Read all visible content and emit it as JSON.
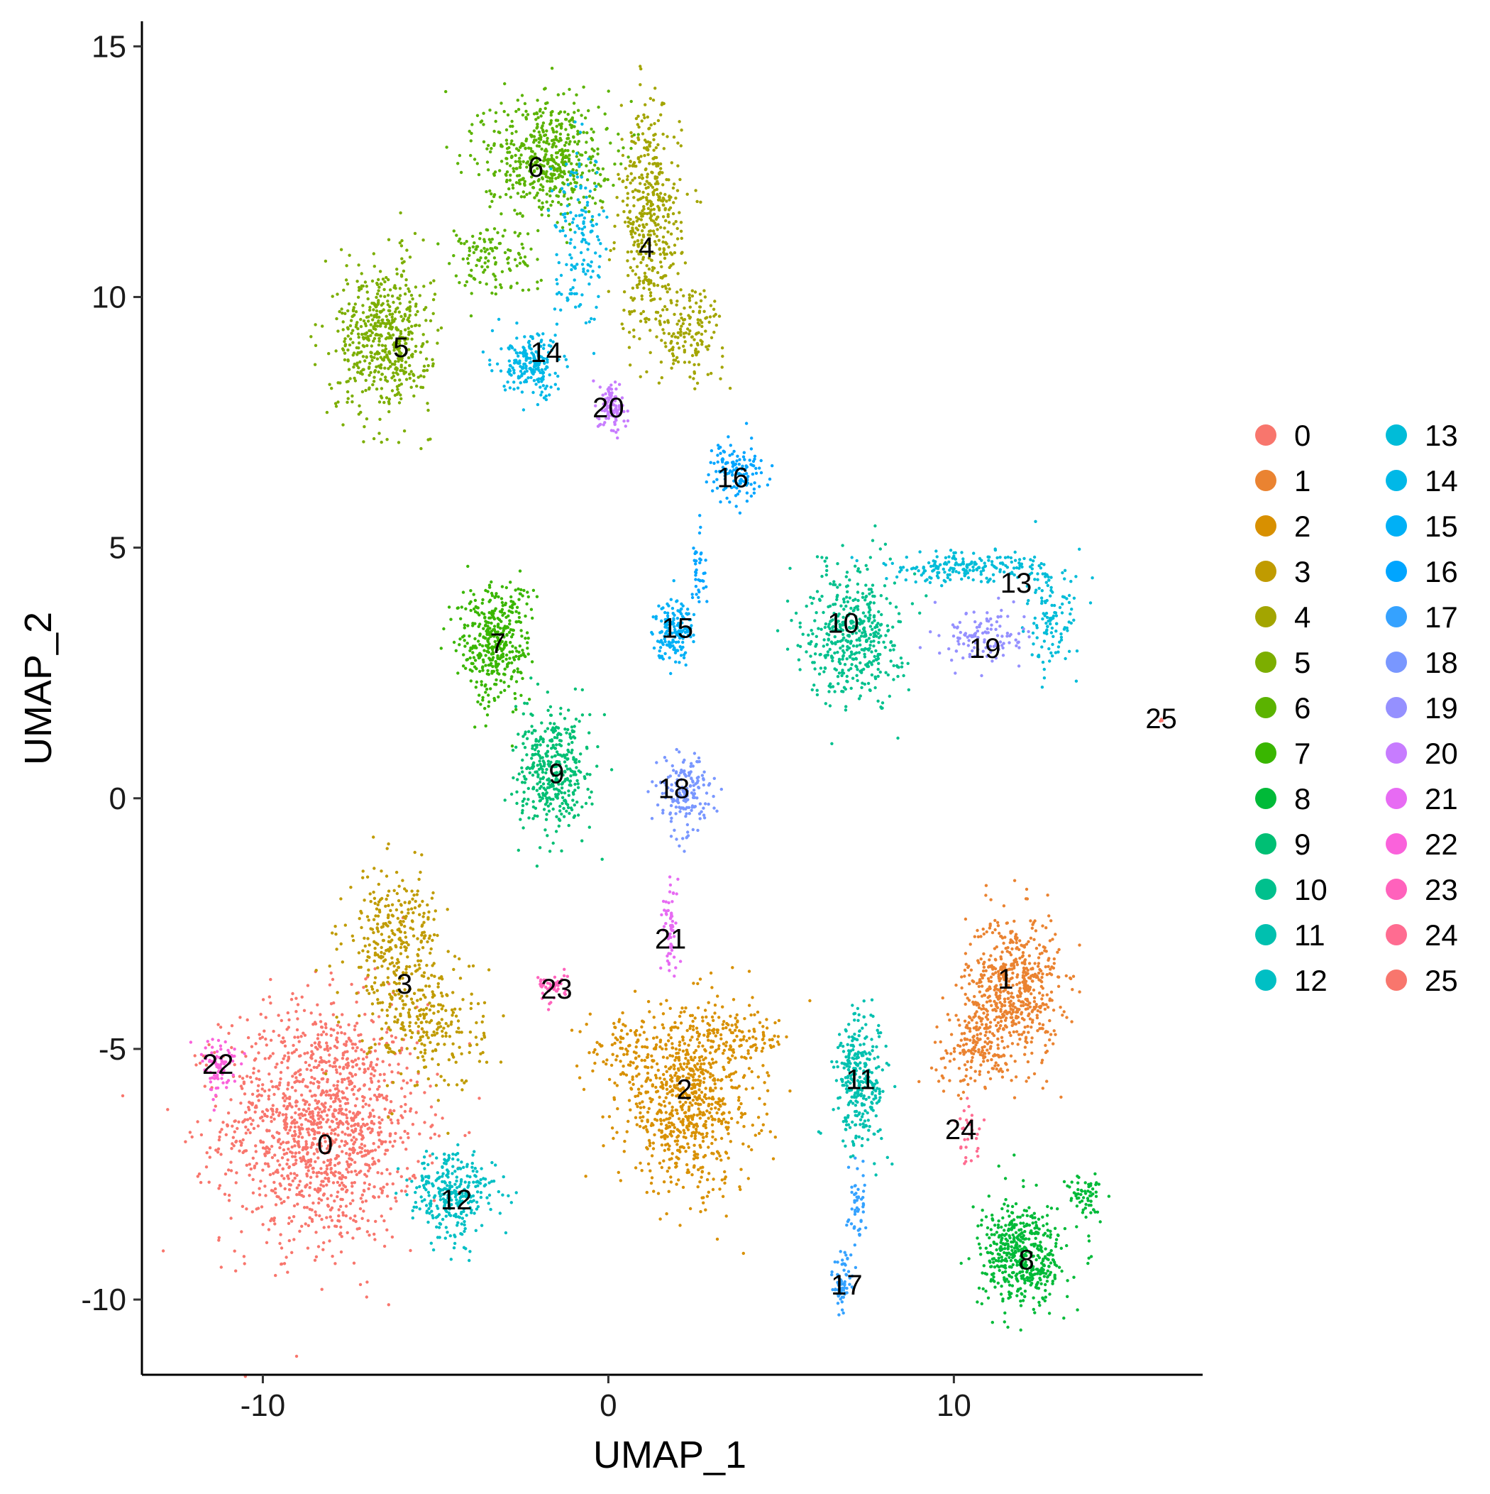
{
  "chart_data": {
    "type": "scatter",
    "title": "",
    "xlabel": "UMAP_1",
    "ylabel": "UMAP_2",
    "xlim": [
      -13.5,
      17.2
    ],
    "ylim": [
      -11.5,
      15.5
    ],
    "xticks": [
      -10,
      0,
      10
    ],
    "yticks": [
      -10,
      -5,
      0,
      5,
      10,
      15
    ],
    "xtick_labels": [
      "-10",
      "0",
      "10"
    ],
    "ytick_labels": [
      "-10",
      "-5",
      "0",
      "5",
      "10",
      "15"
    ],
    "grid": false,
    "legend_position": "right",
    "legend_columns": 2,
    "clusters": [
      {
        "name": "0",
        "color": "#F8766D",
        "label_x": -8.2,
        "label_y": -6.9,
        "blobs": [
          {
            "x": -8.3,
            "y": -6.5,
            "sx": 1.9,
            "sy": 1.6,
            "n": 1400
          }
        ]
      },
      {
        "name": "1",
        "color": "#EA8331",
        "label_x": 11.5,
        "label_y": -3.6,
        "blobs": [
          {
            "x": 11.7,
            "y": -3.8,
            "sx": 0.9,
            "sy": 1.0,
            "n": 600
          },
          {
            "x": 10.6,
            "y": -5.0,
            "sx": 0.8,
            "sy": 0.5,
            "n": 150
          }
        ]
      },
      {
        "name": "2",
        "color": "#D89000",
        "label_x": 2.2,
        "label_y": -5.8,
        "blobs": [
          {
            "x": 2.3,
            "y": -6.0,
            "sx": 1.3,
            "sy": 1.2,
            "n": 800
          },
          {
            "x": 3.8,
            "y": -4.8,
            "sx": 1.0,
            "sy": 0.3,
            "n": 100
          },
          {
            "x": 0.5,
            "y": -5.0,
            "sx": 0.7,
            "sy": 0.4,
            "n": 80
          }
        ]
      },
      {
        "name": "3",
        "color": "#C09B00",
        "label_x": -5.9,
        "label_y": -3.7,
        "blobs": [
          {
            "x": -6.2,
            "y": -2.8,
            "sx": 0.9,
            "sy": 0.9,
            "n": 300
          },
          {
            "x": -5.2,
            "y": -4.5,
            "sx": 1.1,
            "sy": 0.9,
            "n": 250
          }
        ]
      },
      {
        "name": "4",
        "color": "#A3A500",
        "label_x": 1.1,
        "label_y": 11.0,
        "blobs": [
          {
            "x": 1.2,
            "y": 11.5,
            "sx": 0.6,
            "sy": 1.5,
            "n": 450
          },
          {
            "x": 2.3,
            "y": 9.3,
            "sx": 0.7,
            "sy": 0.6,
            "n": 150
          }
        ]
      },
      {
        "name": "5",
        "color": "#7CAE00",
        "label_x": -6.0,
        "label_y": 9.0,
        "blobs": [
          {
            "x": -6.5,
            "y": 9.2,
            "sx": 0.9,
            "sy": 1.0,
            "n": 550
          }
        ]
      },
      {
        "name": "6",
        "color": "#5BB300",
        "label_x": -2.1,
        "label_y": 12.6,
        "blobs": [
          {
            "x": -1.8,
            "y": 12.8,
            "sx": 1.2,
            "sy": 0.8,
            "n": 550
          },
          {
            "x": -3.5,
            "y": 10.8,
            "sx": 0.9,
            "sy": 0.5,
            "n": 120
          }
        ]
      },
      {
        "name": "7",
        "color": "#39B600",
        "label_x": -3.2,
        "label_y": 3.1,
        "blobs": [
          {
            "x": -3.3,
            "y": 3.1,
            "sx": 0.7,
            "sy": 0.8,
            "n": 400
          }
        ]
      },
      {
        "name": "8",
        "color": "#00BA38",
        "label_x": 12.1,
        "label_y": -9.2,
        "blobs": [
          {
            "x": 12.0,
            "y": -9.1,
            "sx": 0.8,
            "sy": 0.7,
            "n": 500
          },
          {
            "x": 13.8,
            "y": -7.9,
            "sx": 0.35,
            "sy": 0.3,
            "n": 60
          }
        ]
      },
      {
        "name": "9",
        "color": "#00BF74",
        "label_x": -1.5,
        "label_y": 0.5,
        "blobs": [
          {
            "x": -1.6,
            "y": 0.5,
            "sx": 0.7,
            "sy": 0.8,
            "n": 400
          }
        ]
      },
      {
        "name": "10",
        "color": "#00C08D",
        "label_x": 6.8,
        "label_y": 3.5,
        "blobs": [
          {
            "x": 7.1,
            "y": 3.3,
            "sx": 0.9,
            "sy": 0.9,
            "n": 450
          }
        ]
      },
      {
        "name": "11",
        "color": "#00C0AF",
        "label_x": 7.3,
        "label_y": -5.6,
        "blobs": [
          {
            "x": 7.3,
            "y": -5.6,
            "sx": 0.5,
            "sy": 0.9,
            "n": 300
          }
        ]
      },
      {
        "name": "12",
        "color": "#00BFC4",
        "label_x": -4.4,
        "label_y": -8.0,
        "blobs": [
          {
            "x": -4.5,
            "y": -7.9,
            "sx": 0.8,
            "sy": 0.6,
            "n": 300
          }
        ]
      },
      {
        "name": "13",
        "color": "#00BCD8",
        "label_x": 11.8,
        "label_y": 4.3,
        "blobs": [
          {
            "x": 10.3,
            "y": 4.6,
            "sx": 1.6,
            "sy": 0.2,
            "n": 200
          },
          {
            "x": 12.8,
            "y": 3.5,
            "sx": 0.5,
            "sy": 0.7,
            "n": 120
          }
        ]
      },
      {
        "name": "14",
        "color": "#00B8E7",
        "label_x": -1.8,
        "label_y": 8.9,
        "blobs": [
          {
            "x": -2.2,
            "y": 8.6,
            "sx": 0.6,
            "sy": 0.4,
            "n": 200
          },
          {
            "x": -0.8,
            "y": 11.0,
            "sx": 0.5,
            "sy": 1.2,
            "n": 150
          }
        ]
      },
      {
        "name": "15",
        "color": "#00B0F6",
        "label_x": 2.0,
        "label_y": 3.4,
        "blobs": [
          {
            "x": 1.9,
            "y": 3.4,
            "sx": 0.4,
            "sy": 0.4,
            "n": 160
          }
        ]
      },
      {
        "name": "16",
        "color": "#00A5FF",
        "label_x": 3.6,
        "label_y": 6.4,
        "blobs": [
          {
            "x": 3.7,
            "y": 6.5,
            "sx": 0.5,
            "sy": 0.4,
            "n": 130
          },
          {
            "x": 2.6,
            "y": 4.6,
            "sx": 0.15,
            "sy": 0.6,
            "n": 40
          }
        ]
      },
      {
        "name": "17",
        "color": "#35A2FF",
        "label_x": 6.9,
        "label_y": -9.7,
        "blobs": [
          {
            "x": 6.8,
            "y": -9.7,
            "sx": 0.2,
            "sy": 0.4,
            "n": 70
          },
          {
            "x": 7.2,
            "y": -8.1,
            "sx": 0.2,
            "sy": 0.6,
            "n": 50
          }
        ]
      },
      {
        "name": "18",
        "color": "#7997FF",
        "label_x": 1.9,
        "label_y": 0.2,
        "blobs": [
          {
            "x": 2.2,
            "y": 0.1,
            "sx": 0.5,
            "sy": 0.5,
            "n": 170
          }
        ]
      },
      {
        "name": "19",
        "color": "#9590FF",
        "label_x": 10.9,
        "label_y": 3.0,
        "blobs": [
          {
            "x": 10.9,
            "y": 3.2,
            "sx": 0.8,
            "sy": 0.4,
            "n": 120
          }
        ]
      },
      {
        "name": "20",
        "color": "#C77CFF",
        "label_x": 0.0,
        "label_y": 7.8,
        "blobs": [
          {
            "x": 0.1,
            "y": 7.8,
            "sx": 0.25,
            "sy": 0.35,
            "n": 100
          }
        ]
      },
      {
        "name": "21",
        "color": "#E76BF3",
        "label_x": 1.8,
        "label_y": -2.8,
        "blobs": [
          {
            "x": 1.8,
            "y": -2.6,
            "sx": 0.15,
            "sy": 0.6,
            "n": 60
          }
        ]
      },
      {
        "name": "22",
        "color": "#FA62DB",
        "label_x": -11.3,
        "label_y": -5.3,
        "blobs": [
          {
            "x": -11.3,
            "y": -5.3,
            "sx": 0.35,
            "sy": 0.4,
            "n": 80
          }
        ]
      },
      {
        "name": "23",
        "color": "#FF62BC",
        "label_x": -1.5,
        "label_y": -3.8,
        "blobs": [
          {
            "x": -1.6,
            "y": -3.8,
            "sx": 0.3,
            "sy": 0.2,
            "n": 50
          }
        ]
      },
      {
        "name": "24",
        "color": "#FF6C91",
        "label_x": 10.2,
        "label_y": -6.6,
        "blobs": [
          {
            "x": 10.5,
            "y": -6.7,
            "sx": 0.25,
            "sy": 0.4,
            "n": 30
          }
        ]
      },
      {
        "name": "25",
        "color": "#F8766D",
        "label_x": 16.0,
        "label_y": 1.6,
        "blobs": [
          {
            "x": 16.0,
            "y": 1.6,
            "sx": 0.05,
            "sy": 0.05,
            "n": 3
          }
        ]
      }
    ]
  }
}
